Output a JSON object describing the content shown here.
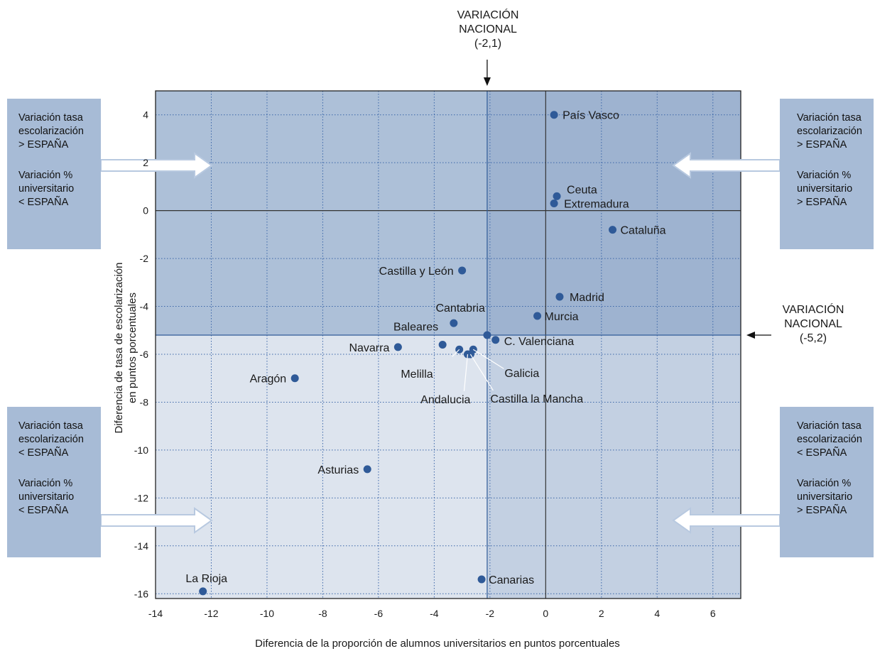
{
  "chart_data": {
    "type": "scatter",
    "xlabel": "Diferencia de la proporción de alumnos universitarios en puntos porcentuales",
    "ylabel_lines": [
      "Diferencia de tasa de escolarización",
      "en puntos porcentuales"
    ],
    "xlim": [
      -14,
      7
    ],
    "ylim": [
      -16.2,
      5
    ],
    "x_ticks": [
      -14,
      -12,
      -10,
      -8,
      -6,
      -4,
      -2,
      0,
      2,
      4,
      6
    ],
    "y_ticks": [
      4,
      2,
      0,
      -2,
      -4,
      -6,
      -8,
      -10,
      -12,
      -14,
      -16
    ],
    "grid": true,
    "reference_lines": {
      "vertical": {
        "x": -2.1,
        "label": "VARIACIÓN\nNACIONAL\n(-2,1)"
      },
      "horizontal": {
        "y": -5.2,
        "label": "VARIACIÓN\nNACIONAL\n(-5,2)"
      }
    },
    "points": [
      {
        "label": "País Vasco",
        "x": 0.3,
        "y": 4.0
      },
      {
        "label": "Ceuta",
        "x": 0.4,
        "y": 0.6
      },
      {
        "label": "Extremadura",
        "x": 0.3,
        "y": 0.3
      },
      {
        "label": "Cataluña",
        "x": 2.4,
        "y": -0.8
      },
      {
        "label": "Castilla y León",
        "x": -3.0,
        "y": -2.5
      },
      {
        "label": "Madrid",
        "x": 0.5,
        "y": -3.6
      },
      {
        "label": "Murcia",
        "x": -0.3,
        "y": -4.4
      },
      {
        "label": "Cantabria",
        "x": -3.3,
        "y": -4.7
      },
      {
        "label": "Baleares",
        "x": -3.7,
        "y": -5.6
      },
      {
        "label": "C. Valenciana",
        "x": -1.8,
        "y": -5.4
      },
      {
        "label": "Navarra",
        "x": -5.3,
        "y": -5.7
      },
      {
        "label": "Melilla",
        "x": -3.1,
        "y": -5.8
      },
      {
        "label": "Andalucia",
        "x": -2.8,
        "y": -6.0
      },
      {
        "label": "Galicia",
        "x": -2.6,
        "y": -5.8
      },
      {
        "label": "Castilla la Mancha",
        "x": -2.7,
        "y": -6.0
      },
      {
        "label": "Aragón",
        "x": -9.0,
        "y": -7.0
      },
      {
        "label": "Asturias",
        "x": -6.4,
        "y": -10.8
      },
      {
        "label": "Canarias",
        "x": -2.3,
        "y": -15.4
      },
      {
        "label": "La Rioja",
        "x": -12.3,
        "y": -15.9
      }
    ],
    "colors": {
      "point": "#2f5a98",
      "quadrant_top_left": "#adc0d8",
      "quadrant_top_right": "#9eb3d0",
      "quadrant_bottom_left": "#dde4ee",
      "quadrant_bottom_right": "#c3d0e2",
      "grid": "#3b66a8",
      "ref_line": "#2f5a98",
      "arrow": "#b8c9e0"
    }
  },
  "side_boxes": {
    "top_left": {
      "line1": "Variación tasa\nescolarización\n> ESPAÑA",
      "line2": "Variación %\nuniversitario\n< ESPAÑA"
    },
    "top_right": {
      "line1": "Variación tasa\nescolarización\n> ESPAÑA",
      "line2": "Variación %\nuniversitario\n> ESPAÑA"
    },
    "bottom_left": {
      "line1": "Variación tasa\nescolarización\n< ESPAÑA",
      "line2": "Variación %\nuniversitario\n< ESPAÑA"
    },
    "bottom_right": {
      "line1": "Variación tasa\nescolarización\n< ESPAÑA",
      "line2": "Variación %\nuniversitario\n> ESPAÑA"
    }
  }
}
